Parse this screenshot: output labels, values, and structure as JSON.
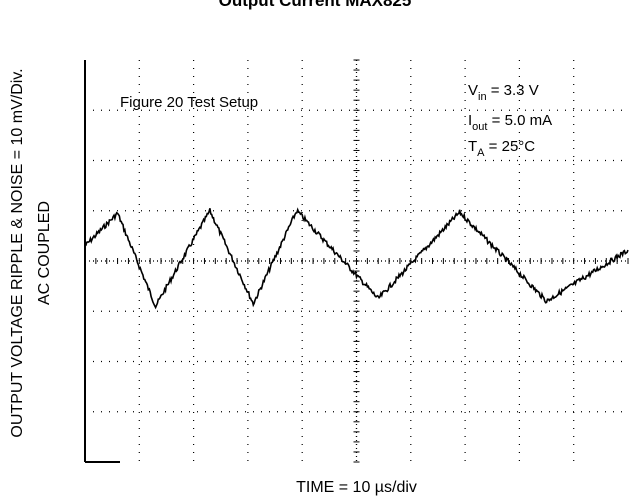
{
  "chart_data": {
    "type": "line",
    "title": "Output Current MAX825",
    "ylabel_lines": [
      "OUTPUT VOLTAGE RIPPLE & NOISE = 10 mV/Div.",
      "AC COUPLED"
    ],
    "xlabel": "TIME = 10 µs/div",
    "annotations": {
      "setup": "Figure 20 Test Setup",
      "vin": "V",
      "vin_sub": "in",
      "vin_val": " = 3.3 V",
      "iout": "I",
      "iout_sub": "out",
      "iout_val": " = 5.0 mA",
      "ta": "T",
      "ta_sub": "A",
      "ta_val": " = 25°C"
    },
    "x_divisions": 10,
    "y_divisions": 8,
    "grid": true,
    "series": [
      {
        "x": [
          0,
          0.6,
          1.3,
          2.3,
          3.1,
          3.9,
          5.4,
          6.9,
          8.5,
          10.2
        ],
        "y": [
          0.3,
          0.95,
          -0.9,
          1.0,
          -0.85,
          1.0,
          -0.75,
          0.97,
          -0.8,
          0.35
        ]
      }
    ]
  }
}
